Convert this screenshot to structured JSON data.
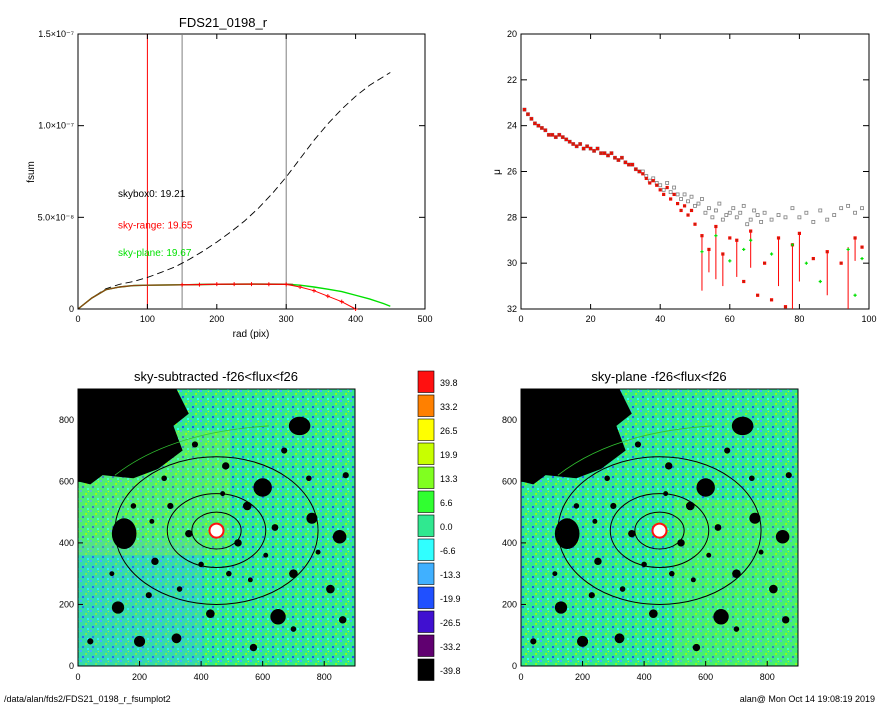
{
  "footer": {
    "path": "/data/alan/fds2/FDS21_0198_r_fsumplot2",
    "user_time": "alan@  Mon Oct 14 19:08:19 2019"
  },
  "colors": {
    "black": "#000000",
    "red": "#ff0000",
    "green": "#00e000",
    "gray": "#7f7f7f",
    "brown": "#8b4513"
  },
  "chart_data": [
    {
      "type": "line",
      "title": "FDS21_0198_r",
      "xlabel": "rad (pix)",
      "ylabel": "fsum",
      "xlim": [
        0,
        500
      ],
      "ylim": [
        0,
        1.5e-07
      ],
      "x_ticks": [
        "0",
        "100",
        "200",
        "300",
        "400",
        "500"
      ],
      "y_ticks": [
        {
          "value": 0,
          "label": "0"
        },
        {
          "value": 5e-08,
          "label": "5.0×10⁻⁸"
        },
        {
          "value": 1e-07,
          "label": "1.0×10⁻⁷"
        },
        {
          "value": 1.5e-07,
          "label": "1.5×10⁻⁷"
        }
      ],
      "vlines": [
        {
          "x": 100,
          "color": "#ff0000"
        },
        {
          "x": 150,
          "color": "#7f7f7f"
        },
        {
          "x": 300,
          "color": "#7f7f7f"
        }
      ],
      "annotations": [
        {
          "label": "skybox0: 19.21",
          "color": "#000000",
          "y": 6.1e-08
        },
        {
          "label": "sky-range: 19.65",
          "color": "#ff0000",
          "y": 4.4e-08
        },
        {
          "label": "sky-plane: 19.67",
          "color": "#00e000",
          "y": 2.9e-08
        }
      ],
      "series": [
        {
          "style": "dashed",
          "color": "#000000",
          "x": [
            0,
            20,
            40,
            60,
            80,
            100,
            120,
            140,
            160,
            180,
            200,
            220,
            240,
            260,
            280,
            300,
            320,
            340,
            360,
            380,
            400,
            420,
            450
          ],
          "values": [
            0,
            6e-09,
            1.1e-08,
            1.35e-08,
            1.5e-08,
            1.72e-08,
            2e-08,
            2.3e-08,
            2.7e-08,
            3.15e-08,
            3.65e-08,
            4.2e-08,
            4.8e-08,
            5.5e-08,
            6.3e-08,
            7.2e-08,
            8.2e-08,
            9.2e-08,
            1.01e-07,
            1.09e-07,
            1.16e-07,
            1.22e-07,
            1.29e-07
          ]
        },
        {
          "style": "solid",
          "color": "#00e000",
          "x": [
            0,
            20,
            40,
            60,
            80,
            100,
            150,
            200,
            250,
            300,
            320,
            340,
            360,
            380,
            400,
            420,
            440,
            450
          ],
          "values": [
            0,
            6e-09,
            1.05e-08,
            1.2e-08,
            1.28e-08,
            1.3e-08,
            1.32e-08,
            1.35e-08,
            1.36e-08,
            1.35e-08,
            1.3e-08,
            1.2e-08,
            1.08e-08,
            9.5e-09,
            7.5e-09,
            5.5e-09,
            3e-09,
            1.5e-09
          ]
        },
        {
          "style": "solid",
          "color": "#8b4513",
          "x": [
            0,
            20,
            40,
            60,
            80,
            100,
            150,
            200,
            250,
            300,
            310
          ],
          "values": [
            0,
            6e-09,
            1.05e-08,
            1.2e-08,
            1.28e-08,
            1.3e-08,
            1.32e-08,
            1.35e-08,
            1.36e-08,
            1.35e-08,
            1.34e-08
          ]
        },
        {
          "style": "markers",
          "color": "#ff0000",
          "x": [
            150,
            175,
            200,
            225,
            250,
            275,
            300,
            320,
            340,
            360,
            380,
            400
          ],
          "values": [
            1.32e-08,
            1.33e-08,
            1.36e-08,
            1.36e-08,
            1.36e-08,
            1.35e-08,
            1.34e-08,
            1.2e-08,
            1e-08,
            7e-09,
            4e-09,
            0
          ]
        }
      ]
    },
    {
      "type": "scatter",
      "xlabel": "",
      "ylabel": "μ",
      "xlim": [
        0,
        100
      ],
      "ylim": [
        32,
        20
      ],
      "x_ticks": [
        "0",
        "20",
        "40",
        "60",
        "80",
        "100"
      ],
      "y_ticks": [
        "20",
        "22",
        "24",
        "26",
        "28",
        "30",
        "32"
      ],
      "series": [
        {
          "style": "open-squares",
          "color": "#7f7f7f",
          "x": [
            1,
            2,
            3,
            4,
            5,
            6,
            7,
            8,
            9,
            10,
            11,
            12,
            13,
            14,
            15,
            16,
            17,
            18,
            19,
            20,
            21,
            22,
            23,
            24,
            25,
            26,
            27,
            28,
            29,
            30,
            31,
            32,
            33,
            34,
            35,
            36,
            37,
            38,
            39,
            40,
            41,
            42,
            43,
            44,
            45,
            46,
            47,
            48,
            49,
            50,
            51,
            52,
            53,
            54,
            55,
            56,
            57,
            58,
            59,
            60,
            61,
            62,
            63,
            64,
            65,
            66,
            67,
            68,
            69,
            70,
            72,
            74,
            76,
            78,
            80,
            82,
            84,
            86,
            88,
            90,
            92,
            94,
            96,
            98
          ],
          "values": [
            23.3,
            23.5,
            23.7,
            23.9,
            24.0,
            24.1,
            24.2,
            24.4,
            24.4,
            24.5,
            24.4,
            24.5,
            24.6,
            24.7,
            24.8,
            24.9,
            24.8,
            25.0,
            24.9,
            25.0,
            25.1,
            25.0,
            25.2,
            25.2,
            25.3,
            25.2,
            25.4,
            25.5,
            25.4,
            25.6,
            25.7,
            25.7,
            25.9,
            26.0,
            26.0,
            26.2,
            26.4,
            26.3,
            26.5,
            26.6,
            26.8,
            26.5,
            26.9,
            26.7,
            27.0,
            27.2,
            27.0,
            27.3,
            27.1,
            27.5,
            27.4,
            27.2,
            27.8,
            27.6,
            28.0,
            27.7,
            27.4,
            28.1,
            27.9,
            27.8,
            27.6,
            28.0,
            27.8,
            27.5,
            28.3,
            28.1,
            27.7,
            27.9,
            28.2,
            27.8,
            28.1,
            27.9,
            28.0,
            27.6,
            28.0,
            27.8,
            28.2,
            27.7,
            28.1,
            27.9,
            27.6,
            27.5,
            27.8,
            27.6
          ]
        },
        {
          "style": "filled-squares",
          "color": "#ff0000",
          "x": [
            1,
            2,
            3,
            4,
            5,
            6,
            7,
            8,
            9,
            10,
            11,
            12,
            13,
            14,
            15,
            16,
            17,
            18,
            19,
            20,
            21,
            22,
            23,
            24,
            25,
            26,
            27,
            28,
            29,
            30,
            31,
            32,
            33,
            34,
            35,
            36,
            37,
            38,
            39,
            40,
            41,
            42,
            43,
            44,
            45,
            46,
            47,
            48,
            49,
            50,
            52,
            54,
            56,
            58,
            60,
            62,
            64,
            66,
            68,
            70,
            72,
            74,
            76,
            78,
            80,
            84,
            88,
            92,
            96,
            98
          ],
          "values": [
            23.3,
            23.5,
            23.7,
            23.9,
            24.0,
            24.1,
            24.2,
            24.4,
            24.4,
            24.5,
            24.4,
            24.5,
            24.6,
            24.7,
            24.8,
            24.9,
            24.8,
            25.0,
            24.9,
            25.0,
            25.1,
            25.0,
            25.2,
            25.2,
            25.3,
            25.2,
            25.4,
            25.5,
            25.4,
            25.6,
            25.7,
            25.7,
            25.9,
            26.0,
            26.1,
            26.3,
            26.5,
            26.4,
            26.6,
            26.8,
            27.0,
            26.7,
            27.2,
            27.0,
            27.4,
            27.7,
            27.5,
            27.9,
            27.7,
            28.3,
            28.8,
            29.4,
            28.4,
            29.6,
            28.9,
            29.0,
            30.8,
            28.6,
            31.4,
            30.0,
            31.6,
            28.9,
            31.9,
            29.2,
            28.7,
            29.8,
            29.5,
            30.0,
            28.9,
            29.3
          ]
        },
        {
          "style": "green-markers",
          "color": "#00e000",
          "x": [
            52,
            56,
            60,
            64,
            66,
            72,
            78,
            82,
            86,
            94,
            96,
            98
          ],
          "values": [
            29.5,
            28.8,
            29.9,
            29.4,
            29.0,
            29.6,
            29.2,
            30.0,
            30.8,
            29.4,
            31.4,
            29.8
          ]
        }
      ],
      "error_bars": [
        {
          "x": 52,
          "y": 28.8,
          "bottom": 31.2
        },
        {
          "x": 54,
          "y": 29.4,
          "bottom": 30.4
        },
        {
          "x": 56,
          "y": 28.4,
          "bottom": 30.7
        },
        {
          "x": 58,
          "y": 29.6,
          "bottom": 31.0
        },
        {
          "x": 62,
          "y": 29.0,
          "bottom": 30.6
        },
        {
          "x": 66,
          "y": 28.6,
          "bottom": 30.2
        },
        {
          "x": 74,
          "y": 28.9,
          "bottom": 31.0
        },
        {
          "x": 78,
          "y": 29.2,
          "bottom": 32.0
        },
        {
          "x": 80,
          "y": 28.7,
          "bottom": 30.8
        },
        {
          "x": 88,
          "y": 29.5,
          "bottom": 31.4
        },
        {
          "x": 94,
          "y": 29.3,
          "bottom": 32.0
        },
        {
          "x": 96,
          "y": 28.9,
          "bottom": 29.9
        }
      ]
    },
    {
      "type": "heatmap",
      "title": "sky-subtracted -f26<flux<f26",
      "xlim": [
        0,
        900
      ],
      "ylim": [
        0,
        900
      ],
      "x_ticks": [
        "0",
        "200",
        "400",
        "600",
        "800"
      ],
      "y_ticks": [
        "0",
        "200",
        "400",
        "600",
        "800"
      ],
      "ellipses": [
        {
          "cx": 450,
          "cy": 440,
          "rx": 80,
          "ry": 60
        },
        {
          "cx": 450,
          "cy": 440,
          "rx": 160,
          "ry": 120
        },
        {
          "cx": 450,
          "cy": 440,
          "rx": 330,
          "ry": 240
        }
      ]
    },
    {
      "type": "heatmap",
      "title": "sky-plane -f26<flux<f26",
      "xlim": [
        0,
        900
      ],
      "ylim": [
        0,
        900
      ],
      "x_ticks": [
        "0",
        "200",
        "400",
        "600",
        "800"
      ],
      "y_ticks": [
        "0",
        "200",
        "400",
        "600",
        "800"
      ],
      "ellipses": [
        {
          "cx": 450,
          "cy": 440,
          "rx": 80,
          "ry": 60
        },
        {
          "cx": 450,
          "cy": 440,
          "rx": 160,
          "ry": 120
        },
        {
          "cx": 450,
          "cy": 440,
          "rx": 330,
          "ry": 240
        }
      ]
    }
  ],
  "colorbar": {
    "labels": [
      "39.8",
      "33.2",
      "26.5",
      "19.9",
      "13.3",
      "6.6",
      "0.0",
      "-6.6",
      "-13.3",
      "-19.9",
      "-26.5",
      "-33.2",
      "-39.8"
    ],
    "colors": [
      "#ff1010",
      "#ff8000",
      "#ffff00",
      "#c8ff00",
      "#80ff20",
      "#30ff30",
      "#30e890",
      "#30ffff",
      "#40b0ff",
      "#2050ff",
      "#4010d0",
      "#600070",
      "#000000"
    ]
  }
}
